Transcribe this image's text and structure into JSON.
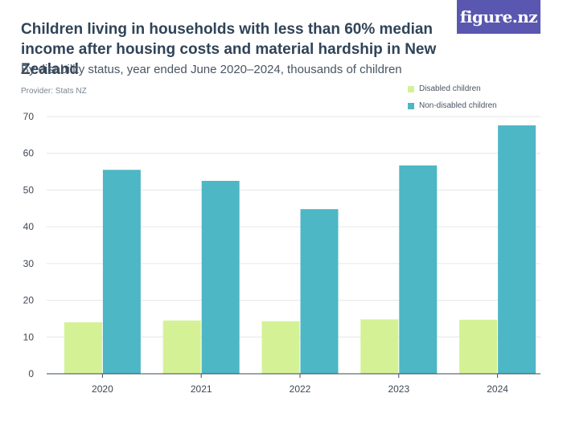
{
  "header": {
    "title": "Children living in households with less than 60% median income after housing costs and material hardship in New Zealand",
    "subtitle": "By disability status, year ended June 2020–2024, thousands of children",
    "provider": "Provider: Stats NZ",
    "logo_text": "figure.nz"
  },
  "colors": {
    "disabled": "#d4f295",
    "non_disabled": "#4db7c5",
    "brand": "#5a57b0",
    "grid": "#e4e6ea"
  },
  "chart_data": {
    "type": "bar",
    "title": "Children living in households with less than 60% median income after housing costs and material hardship in New Zealand",
    "subtitle": "By disability status, year ended June 2020–2024, thousands of children",
    "xlabel": "",
    "ylabel": "",
    "ylim": [
      0,
      70
    ],
    "yticks": [
      0,
      10,
      20,
      30,
      40,
      50,
      60,
      70
    ],
    "grid": true,
    "legend_position": "top-right",
    "categories": [
      "2020",
      "2021",
      "2022",
      "2023",
      "2024"
    ],
    "series": [
      {
        "name": "Disabled children",
        "values": [
          14.0,
          14.5,
          14.3,
          14.8,
          14.7
        ]
      },
      {
        "name": "Non-disabled children",
        "values": [
          55.5,
          52.5,
          44.8,
          56.7,
          67.6
        ]
      }
    ]
  }
}
